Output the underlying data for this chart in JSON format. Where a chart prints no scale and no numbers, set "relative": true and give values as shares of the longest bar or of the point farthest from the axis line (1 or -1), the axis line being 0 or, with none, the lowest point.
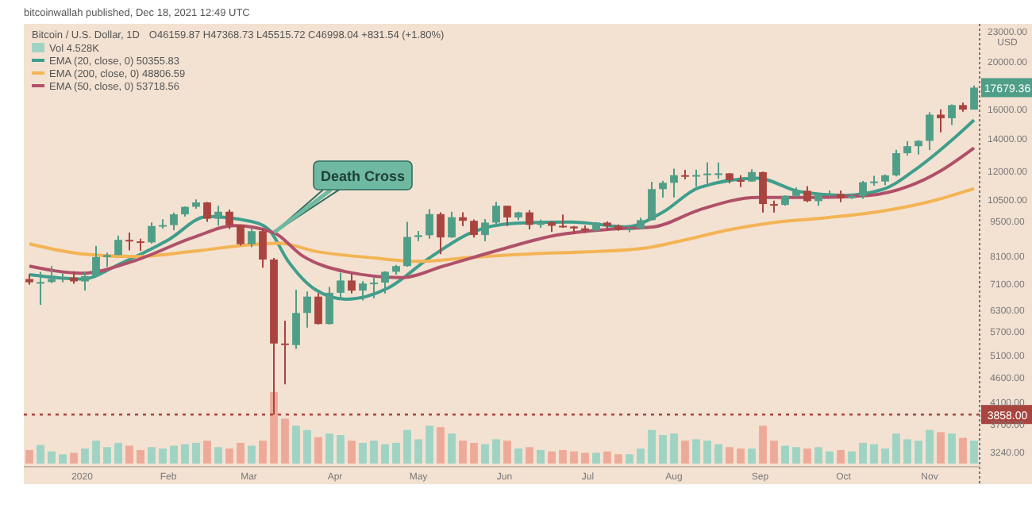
{
  "chart_data": [
    {
      "type": "candlestick",
      "title": "Bitcoin / U.S. Dollar, 1D",
      "subtitle": "O46159.87 H47368.73 L45515.72 C46998.04 +831.54 (+1.80%)",
      "ylabel": "USD",
      "log": true,
      "grid": false,
      "legend": "top left",
      "xlim": [
        "2019-12-11",
        "2020-11-19"
      ],
      "xticks": [
        {
          "value": "2020-01-01",
          "label": "2020"
        },
        {
          "value": "2020-02-01",
          "label": "Feb"
        },
        {
          "value": "2020-03-01",
          "label": "Mar"
        },
        {
          "value": "2020-04-01",
          "label": "Apr"
        },
        {
          "value": "2020-05-01",
          "label": "May"
        },
        {
          "value": "2020-06-01",
          "label": "Jun"
        },
        {
          "value": "2020-07-01",
          "label": "Jul"
        },
        {
          "value": "2020-08-01",
          "label": "Aug"
        },
        {
          "value": "2020-09-01",
          "label": "Sep"
        },
        {
          "value": "2020-10-01",
          "label": "Oct"
        },
        {
          "value": "2020-11-01",
          "label": "Nov"
        }
      ],
      "ylim": [
        3070,
        23800
      ],
      "yticks": [
        {
          "value": 3240,
          "label": "3240.00"
        },
        {
          "value": 3700,
          "label": "3700.00"
        },
        {
          "value": 4100,
          "label": "4100.00"
        },
        {
          "value": 4600,
          "label": "4600.00"
        },
        {
          "value": 5100,
          "label": "5100.00"
        },
        {
          "value": 5700,
          "label": "5700.00"
        },
        {
          "value": 6300,
          "label": "6300.00"
        },
        {
          "value": 7100,
          "label": "7100.00"
        },
        {
          "value": 8100,
          "label": "8100.00"
        },
        {
          "value": 9500,
          "label": "9500.00"
        },
        {
          "value": 10500,
          "label": "10500.00"
        },
        {
          "value": 12000,
          "label": "12000.00"
        },
        {
          "value": 14000,
          "label": "14000.00"
        },
        {
          "value": 16000,
          "label": "16000.00"
        },
        {
          "value": 20000,
          "label": "20000.00"
        },
        {
          "value": 23000,
          "label": "23000.00"
        }
      ],
      "x": [
        "2019-12-13",
        "2019-12-17",
        "2019-12-21",
        "2019-12-25",
        "2019-12-29",
        "2020-01-02",
        "2020-01-06",
        "2020-01-10",
        "2020-01-14",
        "2020-01-18",
        "2020-01-22",
        "2020-01-26",
        "2020-01-30",
        "2020-02-03",
        "2020-02-07",
        "2020-02-11",
        "2020-02-15",
        "2020-02-19",
        "2020-02-23",
        "2020-02-27",
        "2020-03-02",
        "2020-03-06",
        "2020-03-10",
        "2020-03-14",
        "2020-03-18",
        "2020-03-22",
        "2020-03-26",
        "2020-03-30",
        "2020-04-03",
        "2020-04-07",
        "2020-04-11",
        "2020-04-15",
        "2020-04-19",
        "2020-04-23",
        "2020-04-27",
        "2020-05-01",
        "2020-05-05",
        "2020-05-09",
        "2020-05-13",
        "2020-05-17",
        "2020-05-21",
        "2020-05-25",
        "2020-05-29",
        "2020-06-02",
        "2020-06-06",
        "2020-06-10",
        "2020-06-14",
        "2020-06-18",
        "2020-06-22",
        "2020-06-26",
        "2020-06-30",
        "2020-07-04",
        "2020-07-08",
        "2020-07-12",
        "2020-07-16",
        "2020-07-20",
        "2020-07-24",
        "2020-07-28",
        "2020-08-01",
        "2020-08-05",
        "2020-08-09",
        "2020-08-13",
        "2020-08-17",
        "2020-08-21",
        "2020-08-25",
        "2020-08-29",
        "2020-09-02",
        "2020-09-06",
        "2020-09-10",
        "2020-09-14",
        "2020-09-18",
        "2020-09-22",
        "2020-09-26",
        "2020-09-30",
        "2020-10-04",
        "2020-10-08",
        "2020-10-12",
        "2020-10-16",
        "2020-10-20",
        "2020-10-24",
        "2020-10-28",
        "2020-11-01",
        "2020-11-05",
        "2020-11-09",
        "2020-11-13",
        "2020-11-17"
      ],
      "series": [
        {
          "colors": [
            "#a9443f",
            "#4f9e88",
            "#4f9e88",
            "#4f9e88",
            "#a9443f",
            "#4f9e88",
            "#4f9e88",
            "#4f9e88",
            "#4f9e88",
            "#a9443f",
            "#a9443f",
            "#4f9e88",
            "#4f9e88",
            "#4f9e88",
            "#4f9e88",
            "#4f9e88",
            "#a9443f",
            "#4f9e88",
            "#a9443f",
            "#a9443f",
            "#4f9e88",
            "#a9443f",
            "#a9443f",
            "#a9443f",
            "#4f9e88",
            "#4f9e88",
            "#a9443f",
            "#4f9e88",
            "#4f9e88",
            "#a9443f",
            "#4f9e88",
            "#4f9e88",
            "#4f9e88",
            "#4f9e88",
            "#4f9e88",
            "#4f9e88",
            "#4f9e88",
            "#a9443f",
            "#4f9e88",
            "#a9443f",
            "#a9443f",
            "#4f9e88",
            "#4f9e88",
            "#a9443f",
            "#4f9e88",
            "#a9443f",
            "#4f9e88",
            "#a9443f",
            "#a9443f",
            "#a9443f",
            "#a9443f",
            "#4f9e88",
            "#a9443f",
            "#a9443f",
            "#4f9e88",
            "#4f9e88",
            "#4f9e88",
            "#4f9e88",
            "#4f9e88",
            "#a9443f",
            "#4f9e88",
            "#4f9e88",
            "#4f9e88",
            "#a9443f",
            "#a9443f",
            "#4f9e88",
            "#a9443f",
            "#a9443f",
            "#4f9e88",
            "#4f9e88",
            "#a9443f",
            "#4f9e88",
            "#4f9e88",
            "#a9443f",
            "#4f9e88",
            "#4f9e88",
            "#4f9e88",
            "#4f9e88",
            "#4f9e88",
            "#4f9e88",
            "#4f9e88",
            "#4f9e88",
            "#a9443f",
            "#4f9e88",
            "#a9443f",
            "#4f9e88"
          ],
          "ohlc": [
            [
              7250,
              7420,
              7060,
              7140
            ],
            [
              7140,
              7500,
              6430,
              7150
            ],
            [
              7150,
              7700,
              7110,
              7250
            ],
            [
              7250,
              7440,
              7140,
              7300
            ],
            [
              7300,
              7520,
              7090,
              7170
            ],
            [
              7170,
              7500,
              6870,
              7350
            ],
            [
              7350,
              8460,
              7350,
              8030
            ],
            [
              8030,
              8200,
              7680,
              8110
            ],
            [
              8110,
              8880,
              8100,
              8700
            ],
            [
              8700,
              9000,
              8280,
              8640
            ],
            [
              8640,
              8750,
              8270,
              8600
            ],
            [
              8600,
              9440,
              8550,
              9280
            ],
            [
              9280,
              9580,
              9170,
              9320
            ],
            [
              9320,
              9880,
              9100,
              9800
            ],
            [
              9800,
              10170,
              9700,
              10150
            ],
            [
              10150,
              10500,
              10060,
              10360
            ],
            [
              10360,
              10380,
              9460,
              9600
            ],
            [
              9600,
              10200,
              9300,
              9920
            ],
            [
              9920,
              10020,
              9150,
              9320
            ],
            [
              9320,
              9350,
              8470,
              8530
            ],
            [
              8530,
              9190,
              8410,
              9060
            ],
            [
              9060,
              9170,
              7640,
              7940
            ],
            [
              7940,
              8000,
              3858,
              5370
            ],
            [
              5370,
              5970,
              4440,
              5330
            ],
            [
              5330,
              6900,
              5240,
              6190
            ],
            [
              6190,
              6840,
              5780,
              6680
            ],
            [
              6680,
              6790,
              5870,
              5880
            ],
            [
              5880,
              6990,
              5860,
              6800
            ],
            [
              6800,
              7460,
              6610,
              7200
            ],
            [
              7200,
              7430,
              6780,
              6870
            ],
            [
              6870,
              7180,
              6560,
              7100
            ],
            [
              7100,
              7290,
              6630,
              7130
            ],
            [
              7130,
              7520,
              6780,
              7500
            ],
            [
              7500,
              7740,
              7400,
              7700
            ],
            [
              7700,
              9460,
              7680,
              8820
            ],
            [
              8820,
              9070,
              8650,
              8890
            ],
            [
              8890,
              10040,
              8750,
              9810
            ],
            [
              9810,
              9890,
              8140,
              8800
            ],
            [
              8800,
              9920,
              8780,
              9670
            ],
            [
              9670,
              9890,
              9270,
              9510
            ],
            [
              9510,
              9570,
              8800,
              8900
            ],
            [
              8900,
              9590,
              8640,
              9430
            ],
            [
              9430,
              10390,
              9330,
              10200
            ],
            [
              10200,
              10200,
              9280,
              9660
            ],
            [
              9660,
              9920,
              9540,
              9890
            ],
            [
              9890,
              9990,
              9140,
              9330
            ],
            [
              9330,
              9560,
              9200,
              9450
            ],
            [
              9450,
              9500,
              9030,
              9290
            ],
            [
              9290,
              9790,
              9200,
              9260
            ],
            [
              9260,
              9280,
              8950,
              9180
            ],
            [
              9180,
              9310,
              8990,
              9090
            ],
            [
              9090,
              9450,
              9060,
              9430
            ],
            [
              9430,
              9480,
              9120,
              9290
            ],
            [
              9290,
              9350,
              9080,
              9130
            ],
            [
              9130,
              9210,
              9010,
              9170
            ],
            [
              9170,
              9650,
              9150,
              9540
            ],
            [
              9540,
              11400,
              9520,
              11020
            ],
            [
              11020,
              11460,
              10590,
              11350
            ],
            [
              11350,
              12120,
              10600,
              11760
            ],
            [
              11760,
              12060,
              11530,
              11680
            ],
            [
              11680,
              12070,
              11140,
              11770
            ],
            [
              11770,
              12490,
              11300,
              11850
            ],
            [
              11850,
              12480,
              11550,
              11860
            ],
            [
              11860,
              11880,
              11320,
              11490
            ],
            [
              11490,
              11760,
              11120,
              11420
            ],
            [
              11420,
              12090,
              11400,
              11930
            ],
            [
              11930,
              11950,
              9880,
              10280
            ],
            [
              10280,
              10450,
              9880,
              10240
            ],
            [
              10240,
              10700,
              10200,
              10680
            ],
            [
              10680,
              11100,
              10630,
              10940
            ],
            [
              10940,
              11180,
              10370,
              10420
            ],
            [
              10420,
              10790,
              10200,
              10740
            ],
            [
              10740,
              10950,
              10640,
              10780
            ],
            [
              10780,
              10950,
              10370,
              10570
            ],
            [
              10570,
              10800,
              10530,
              10670
            ],
            [
              10670,
              11450,
              10530,
              11380
            ],
            [
              11380,
              11720,
              11200,
              11420
            ],
            [
              11420,
              11800,
              11230,
              11750
            ],
            [
              11750,
              13230,
              11690,
              13030
            ],
            [
              13030,
              13780,
              12900,
              13460
            ],
            [
              13460,
              13850,
              12950,
              13800
            ],
            [
              13800,
              15780,
              13220,
              15590
            ],
            [
              15590,
              15980,
              14350,
              15330
            ],
            [
              15330,
              16350,
              14850,
              16300
            ],
            [
              16300,
              16490,
              15800,
              15960
            ],
            [
              15960,
              17860,
              15960,
              17679.36
            ]
          ]
        },
        {
          "type": "line",
          "name": "EMA (20, close, 0) 50355.83",
          "color": "#3f9e8c",
          "x": [
            "2019-12-13",
            "2020-01-01",
            "2020-01-15",
            "2020-02-01",
            "2020-02-15",
            "2020-03-01",
            "2020-03-08",
            "2020-03-15",
            "2020-03-25",
            "2020-04-05",
            "2020-04-20",
            "2020-05-05",
            "2020-05-20",
            "2020-06-05",
            "2020-06-25",
            "2020-07-15",
            "2020-07-28",
            "2020-08-10",
            "2020-08-31",
            "2020-09-15",
            "2020-10-01",
            "2020-10-15",
            "2020-10-28",
            "2020-11-10",
            "2020-11-17"
          ],
          "values": [
            7400,
            7250,
            7800,
            8700,
            9700,
            9500,
            9150,
            7900,
            6900,
            6600,
            6950,
            8000,
            9000,
            9400,
            9450,
            9250,
            9900,
            11100,
            11600,
            10900,
            10700,
            11000,
            12200,
            14000,
            15200
          ]
        },
        {
          "type": "line",
          "name": "EMA (200, close, 0) 48806.59",
          "color": "#f4b455",
          "x": [
            "2019-12-13",
            "2020-01-01",
            "2020-01-20",
            "2020-02-10",
            "2020-03-01",
            "2020-03-12",
            "2020-03-25",
            "2020-04-15",
            "2020-05-01",
            "2020-05-20",
            "2020-06-10",
            "2020-07-01",
            "2020-07-20",
            "2020-08-05",
            "2020-08-20",
            "2020-09-05",
            "2020-09-25",
            "2020-10-15",
            "2020-11-01",
            "2020-11-17"
          ],
          "values": [
            8540,
            8150,
            8050,
            8250,
            8500,
            8560,
            8250,
            8000,
            7870,
            8020,
            8150,
            8230,
            8350,
            8700,
            9100,
            9420,
            9650,
            9950,
            10400,
            11050
          ]
        },
        {
          "type": "line",
          "name": "EMA (50, close, 0) 53718.56",
          "color": "#b0506a",
          "x": [
            "2019-12-13",
            "2020-01-01",
            "2020-01-20",
            "2020-02-10",
            "2020-02-25",
            "2020-03-10",
            "2020-03-20",
            "2020-04-05",
            "2020-04-25",
            "2020-05-10",
            "2020-05-30",
            "2020-06-20",
            "2020-07-10",
            "2020-07-25",
            "2020-08-10",
            "2020-08-31",
            "2020-09-20",
            "2020-10-10",
            "2020-10-25",
            "2020-11-05",
            "2020-11-17"
          ],
          "values": [
            7700,
            7450,
            7900,
            8800,
            9300,
            9000,
            8100,
            7500,
            7300,
            7700,
            8300,
            8900,
            9150,
            9250,
            10000,
            10600,
            10600,
            10700,
            11200,
            12000,
            13350
          ]
        }
      ],
      "ref_lines": [
        {
          "axis": "y",
          "value": 3858,
          "label": "3858.00",
          "color": "#a9443f",
          "line_style": "dotted"
        }
      ],
      "annotations": [
        "bitcoinwallah published, Dec 18, 2021 12:49 UTC",
        {
          "text": "Death Cross",
          "x": "2020-03-10",
          "y": 9000
        },
        "17679.36"
      ]
    },
    {
      "type": "bar",
      "relative": true,
      "legend": "top left",
      "xlim": [
        "2019-12-11",
        "2020-11-19"
      ],
      "x": [
        "2019-12-13",
        "2019-12-17",
        "2019-12-21",
        "2019-12-25",
        "2019-12-29",
        "2020-01-02",
        "2020-01-06",
        "2020-01-10",
        "2020-01-14",
        "2020-01-18",
        "2020-01-22",
        "2020-01-26",
        "2020-01-30",
        "2020-02-03",
        "2020-02-07",
        "2020-02-11",
        "2020-02-15",
        "2020-02-19",
        "2020-02-23",
        "2020-02-27",
        "2020-03-02",
        "2020-03-06",
        "2020-03-10",
        "2020-03-14",
        "2020-03-18",
        "2020-03-22",
        "2020-03-26",
        "2020-03-30",
        "2020-04-03",
        "2020-04-07",
        "2020-04-11",
        "2020-04-15",
        "2020-04-19",
        "2020-04-23",
        "2020-04-27",
        "2020-05-01",
        "2020-05-05",
        "2020-05-09",
        "2020-05-13",
        "2020-05-17",
        "2020-05-21",
        "2020-05-25",
        "2020-05-29",
        "2020-06-02",
        "2020-06-06",
        "2020-06-10",
        "2020-06-14",
        "2020-06-18",
        "2020-06-22",
        "2020-06-26",
        "2020-06-30",
        "2020-07-04",
        "2020-07-08",
        "2020-07-12",
        "2020-07-16",
        "2020-07-20",
        "2020-07-24",
        "2020-07-28",
        "2020-08-01",
        "2020-08-05",
        "2020-08-09",
        "2020-08-13",
        "2020-08-17",
        "2020-08-21",
        "2020-08-25",
        "2020-08-29",
        "2020-09-02",
        "2020-09-06",
        "2020-09-10",
        "2020-09-14",
        "2020-09-18",
        "2020-09-22",
        "2020-09-26",
        "2020-09-30",
        "2020-10-04",
        "2020-10-08",
        "2020-10-12",
        "2020-10-16",
        "2020-10-20",
        "2020-10-24",
        "2020-10-28",
        "2020-11-01",
        "2020-11-05",
        "2020-11-09",
        "2020-11-13",
        "2020-11-17"
      ],
      "series": [
        {
          "name": "Vol 4.528K",
          "color": "#9fd3c4",
          "colors": [
            "#eeaa99",
            "#9fd3c4",
            "#9fd3c4",
            "#9fd3c4",
            "#eeaa99",
            "#9fd3c4",
            "#9fd3c4",
            "#9fd3c4",
            "#9fd3c4",
            "#eeaa99",
            "#eeaa99",
            "#9fd3c4",
            "#9fd3c4",
            "#9fd3c4",
            "#9fd3c4",
            "#9fd3c4",
            "#eeaa99",
            "#9fd3c4",
            "#eeaa99",
            "#eeaa99",
            "#9fd3c4",
            "#eeaa99",
            "#eeaa99",
            "#eeaa99",
            "#9fd3c4",
            "#9fd3c4",
            "#eeaa99",
            "#9fd3c4",
            "#9fd3c4",
            "#eeaa99",
            "#9fd3c4",
            "#9fd3c4",
            "#9fd3c4",
            "#9fd3c4",
            "#9fd3c4",
            "#9fd3c4",
            "#9fd3c4",
            "#eeaa99",
            "#9fd3c4",
            "#eeaa99",
            "#eeaa99",
            "#9fd3c4",
            "#9fd3c4",
            "#eeaa99",
            "#9fd3c4",
            "#eeaa99",
            "#9fd3c4",
            "#eeaa99",
            "#eeaa99",
            "#eeaa99",
            "#eeaa99",
            "#9fd3c4",
            "#eeaa99",
            "#eeaa99",
            "#9fd3c4",
            "#9fd3c4",
            "#9fd3c4",
            "#9fd3c4",
            "#9fd3c4",
            "#eeaa99",
            "#9fd3c4",
            "#9fd3c4",
            "#9fd3c4",
            "#eeaa99",
            "#eeaa99",
            "#9fd3c4",
            "#eeaa99",
            "#eeaa99",
            "#9fd3c4",
            "#9fd3c4",
            "#eeaa99",
            "#9fd3c4",
            "#9fd3c4",
            "#eeaa99",
            "#9fd3c4",
            "#9fd3c4",
            "#9fd3c4",
            "#9fd3c4",
            "#9fd3c4",
            "#9fd3c4",
            "#9fd3c4",
            "#9fd3c4",
            "#eeaa99",
            "#9fd3c4",
            "#eeaa99",
            "#9fd3c4"
          ],
          "values": [
            0.19,
            0.26,
            0.17,
            0.13,
            0.15,
            0.21,
            0.32,
            0.23,
            0.29,
            0.25,
            0.19,
            0.23,
            0.21,
            0.25,
            0.27,
            0.29,
            0.32,
            0.23,
            0.21,
            0.29,
            0.25,
            0.32,
            1,
            0.63,
            0.53,
            0.47,
            0.37,
            0.42,
            0.4,
            0.32,
            0.29,
            0.32,
            0.27,
            0.29,
            0.47,
            0.34,
            0.53,
            0.51,
            0.42,
            0.32,
            0.29,
            0.27,
            0.34,
            0.32,
            0.21,
            0.23,
            0.19,
            0.17,
            0.19,
            0.17,
            0.15,
            0.15,
            0.17,
            0.13,
            0.13,
            0.21,
            0.47,
            0.4,
            0.42,
            0.32,
            0.34,
            0.32,
            0.27,
            0.23,
            0.21,
            0.21,
            0.53,
            0.32,
            0.25,
            0.23,
            0.21,
            0.23,
            0.17,
            0.19,
            0.17,
            0.29,
            0.27,
            0.21,
            0.42,
            0.34,
            0.32,
            0.47,
            0.44,
            0.42,
            0.36,
            0.32
          ]
        }
      ]
    }
  ]
}
